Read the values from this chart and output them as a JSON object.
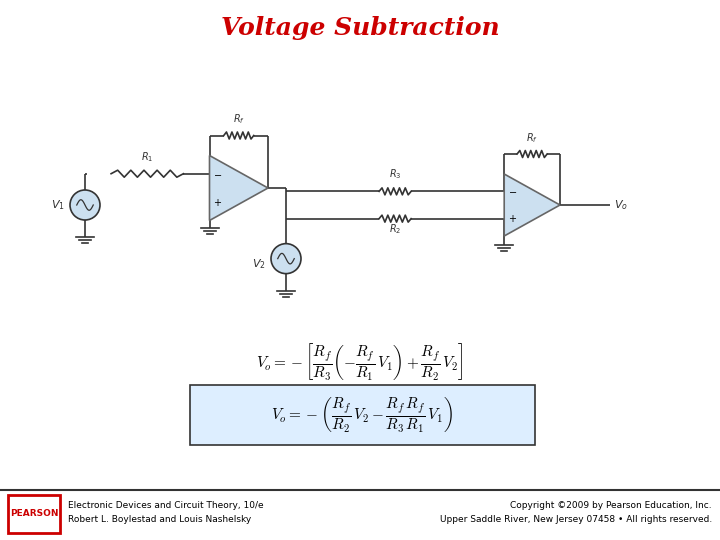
{
  "title": "Voltage Subtraction",
  "title_color": "#cc0000",
  "title_fontsize": 18,
  "bg_color": "#ffffff",
  "footer_left_line1": "Electronic Devices and Circuit Theory, 10/e",
  "footer_left_line2": "Robert L. Boylestad and Louis Nashelsky",
  "footer_right_line1": "Copyright ©2009 by Pearson Education, Inc.",
  "footer_right_line2": "Upper Saddle River, New Jersey 07458 • All rights reserved.",
  "footer_fontsize": 6.5,
  "pearson_color": "#cc0000",
  "opamp_fill": "#cce0f0",
  "opamp_edge": "#666666",
  "wire_color": "#333333",
  "resistor_color": "#333333",
  "label_color": "#333333",
  "eq_box_fill": "#ddeeff",
  "eq_box_edge": "#333333"
}
